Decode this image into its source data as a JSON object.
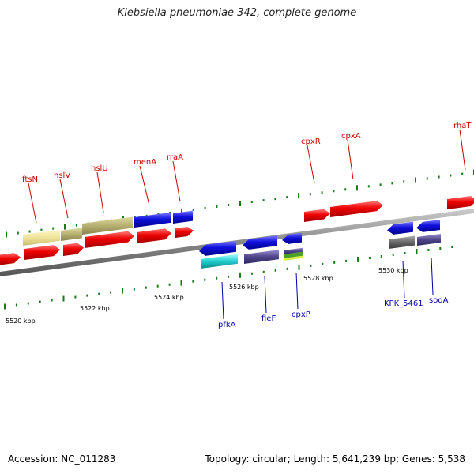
{
  "title": "Klebsiella pneumoniae 342, complete genome",
  "footer": {
    "accession": "Accession: NC_011283",
    "stats": "Topology: circular; Length: 5,641,239 bp; Genes: 5,538"
  },
  "scale_labels": [
    "5520 kbp",
    "5522 kbp",
    "5524 kbp",
    "5526 kbp",
    "5528 kbp",
    "5530 kbp"
  ],
  "forward_gene_labels": [
    "ftsN",
    "hslV",
    "hslU",
    "menA",
    "rraA",
    "cpxR",
    "cpxA",
    "rhaT"
  ],
  "reverse_gene_labels": [
    "pfkA",
    "fieF",
    "cpxP",
    "KPK_5461",
    "sodA"
  ],
  "colors": {
    "forward_cds": "#ee0000",
    "reverse_cds": "#1010dd",
    "backbone": "#888888",
    "forward_label": "#cc0000",
    "reverse_label": "#0000aa",
    "tick": "#1a7a1a"
  }
}
